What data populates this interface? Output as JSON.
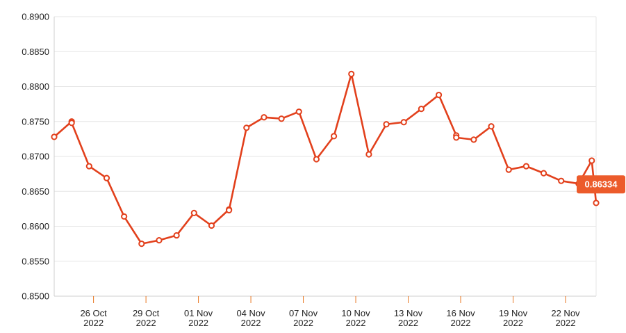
{
  "chart_data": {
    "type": "line",
    "title": "",
    "xlabel": "",
    "ylabel": "",
    "ylim": [
      0.85,
      0.89
    ],
    "yticks": [
      "0.8500",
      "0.8550",
      "0.8600",
      "0.8650",
      "0.8700",
      "0.8750",
      "0.8800",
      "0.8850",
      "0.8900"
    ],
    "xticks": [
      {
        "date": "2022-10-26",
        "line1": "26 Oct",
        "line2": "2022"
      },
      {
        "date": "2022-10-29",
        "line1": "29 Oct",
        "line2": "2022"
      },
      {
        "date": "2022-11-01",
        "line1": "01 Nov",
        "line2": "2022"
      },
      {
        "date": "2022-11-04",
        "line1": "04 Nov",
        "line2": "2022"
      },
      {
        "date": "2022-11-07",
        "line1": "07 Nov",
        "line2": "2022"
      },
      {
        "date": "2022-11-10",
        "line1": "10 Nov",
        "line2": "2022"
      },
      {
        "date": "2022-11-13",
        "line1": "13 Nov",
        "line2": "2022"
      },
      {
        "date": "2022-11-16",
        "line1": "16 Nov",
        "line2": "2022"
      },
      {
        "date": "2022-11-19",
        "line1": "19 Nov",
        "line2": "2022"
      },
      {
        "date": "2022-11-22",
        "line1": "22 Nov",
        "line2": "2022"
      }
    ],
    "xlim": [
      "2022-10-23 18:00",
      "2022-11-23 18:00"
    ],
    "grid": true,
    "series_color": "#e2401c",
    "last_value_label": "0.86334",
    "last_label_color": "#ec5b2b",
    "series": [
      {
        "points": [
          {
            "x": "2022-10-23 18:00",
            "y": 0.8728
          },
          {
            "x": "2022-10-24 18:00",
            "y": 0.875
          },
          {
            "x": "2022-10-24 18:00",
            "y": 0.8748
          },
          {
            "x": "2022-10-25 18:00",
            "y": 0.8686
          },
          {
            "x": "2022-10-26 18:00",
            "y": 0.8669
          },
          {
            "x": "2022-10-27 18:00",
            "y": 0.8614
          },
          {
            "x": "2022-10-28 18:00",
            "y": 0.8575
          },
          {
            "x": "2022-10-29 18:00",
            "y": 0.858
          },
          {
            "x": "2022-10-30 18:00",
            "y": 0.8587
          },
          {
            "x": "2022-10-31 18:00",
            "y": 0.8619
          },
          {
            "x": "2022-11-01 18:00",
            "y": 0.8601
          },
          {
            "x": "2022-11-02 18:00",
            "y": 0.8624
          },
          {
            "x": "2022-11-02 18:00",
            "y": 0.8623
          },
          {
            "x": "2022-11-03 18:00",
            "y": 0.8741
          },
          {
            "x": "2022-11-04 18:00",
            "y": 0.8756
          },
          {
            "x": "2022-11-05 18:00",
            "y": 0.8754
          },
          {
            "x": "2022-11-06 18:00",
            "y": 0.8764
          },
          {
            "x": "2022-11-07 18:00",
            "y": 0.8696
          },
          {
            "x": "2022-11-08 18:00",
            "y": 0.8729
          },
          {
            "x": "2022-11-09 18:00",
            "y": 0.8818
          },
          {
            "x": "2022-11-10 18:00",
            "y": 0.8703
          },
          {
            "x": "2022-11-11 18:00",
            "y": 0.8746
          },
          {
            "x": "2022-11-12 18:00",
            "y": 0.8749
          },
          {
            "x": "2022-11-13 18:00",
            "y": 0.8768
          },
          {
            "x": "2022-11-14 18:00",
            "y": 0.8788
          },
          {
            "x": "2022-11-15 18:00",
            "y": 0.873
          },
          {
            "x": "2022-11-15 18:00",
            "y": 0.8727
          },
          {
            "x": "2022-11-16 18:00",
            "y": 0.8724
          },
          {
            "x": "2022-11-17 18:00",
            "y": 0.8743
          },
          {
            "x": "2022-11-18 18:00",
            "y": 0.8681
          },
          {
            "x": "2022-11-19 18:00",
            "y": 0.8686
          },
          {
            "x": "2022-11-20 18:00",
            "y": 0.8676
          },
          {
            "x": "2022-11-21 18:00",
            "y": 0.8665
          },
          {
            "x": "2022-11-22 18:00",
            "y": 0.8661
          },
          {
            "x": "2022-11-23 12:00",
            "y": 0.8694
          },
          {
            "x": "2022-11-23 18:00",
            "y": 0.86334
          }
        ]
      }
    ]
  }
}
